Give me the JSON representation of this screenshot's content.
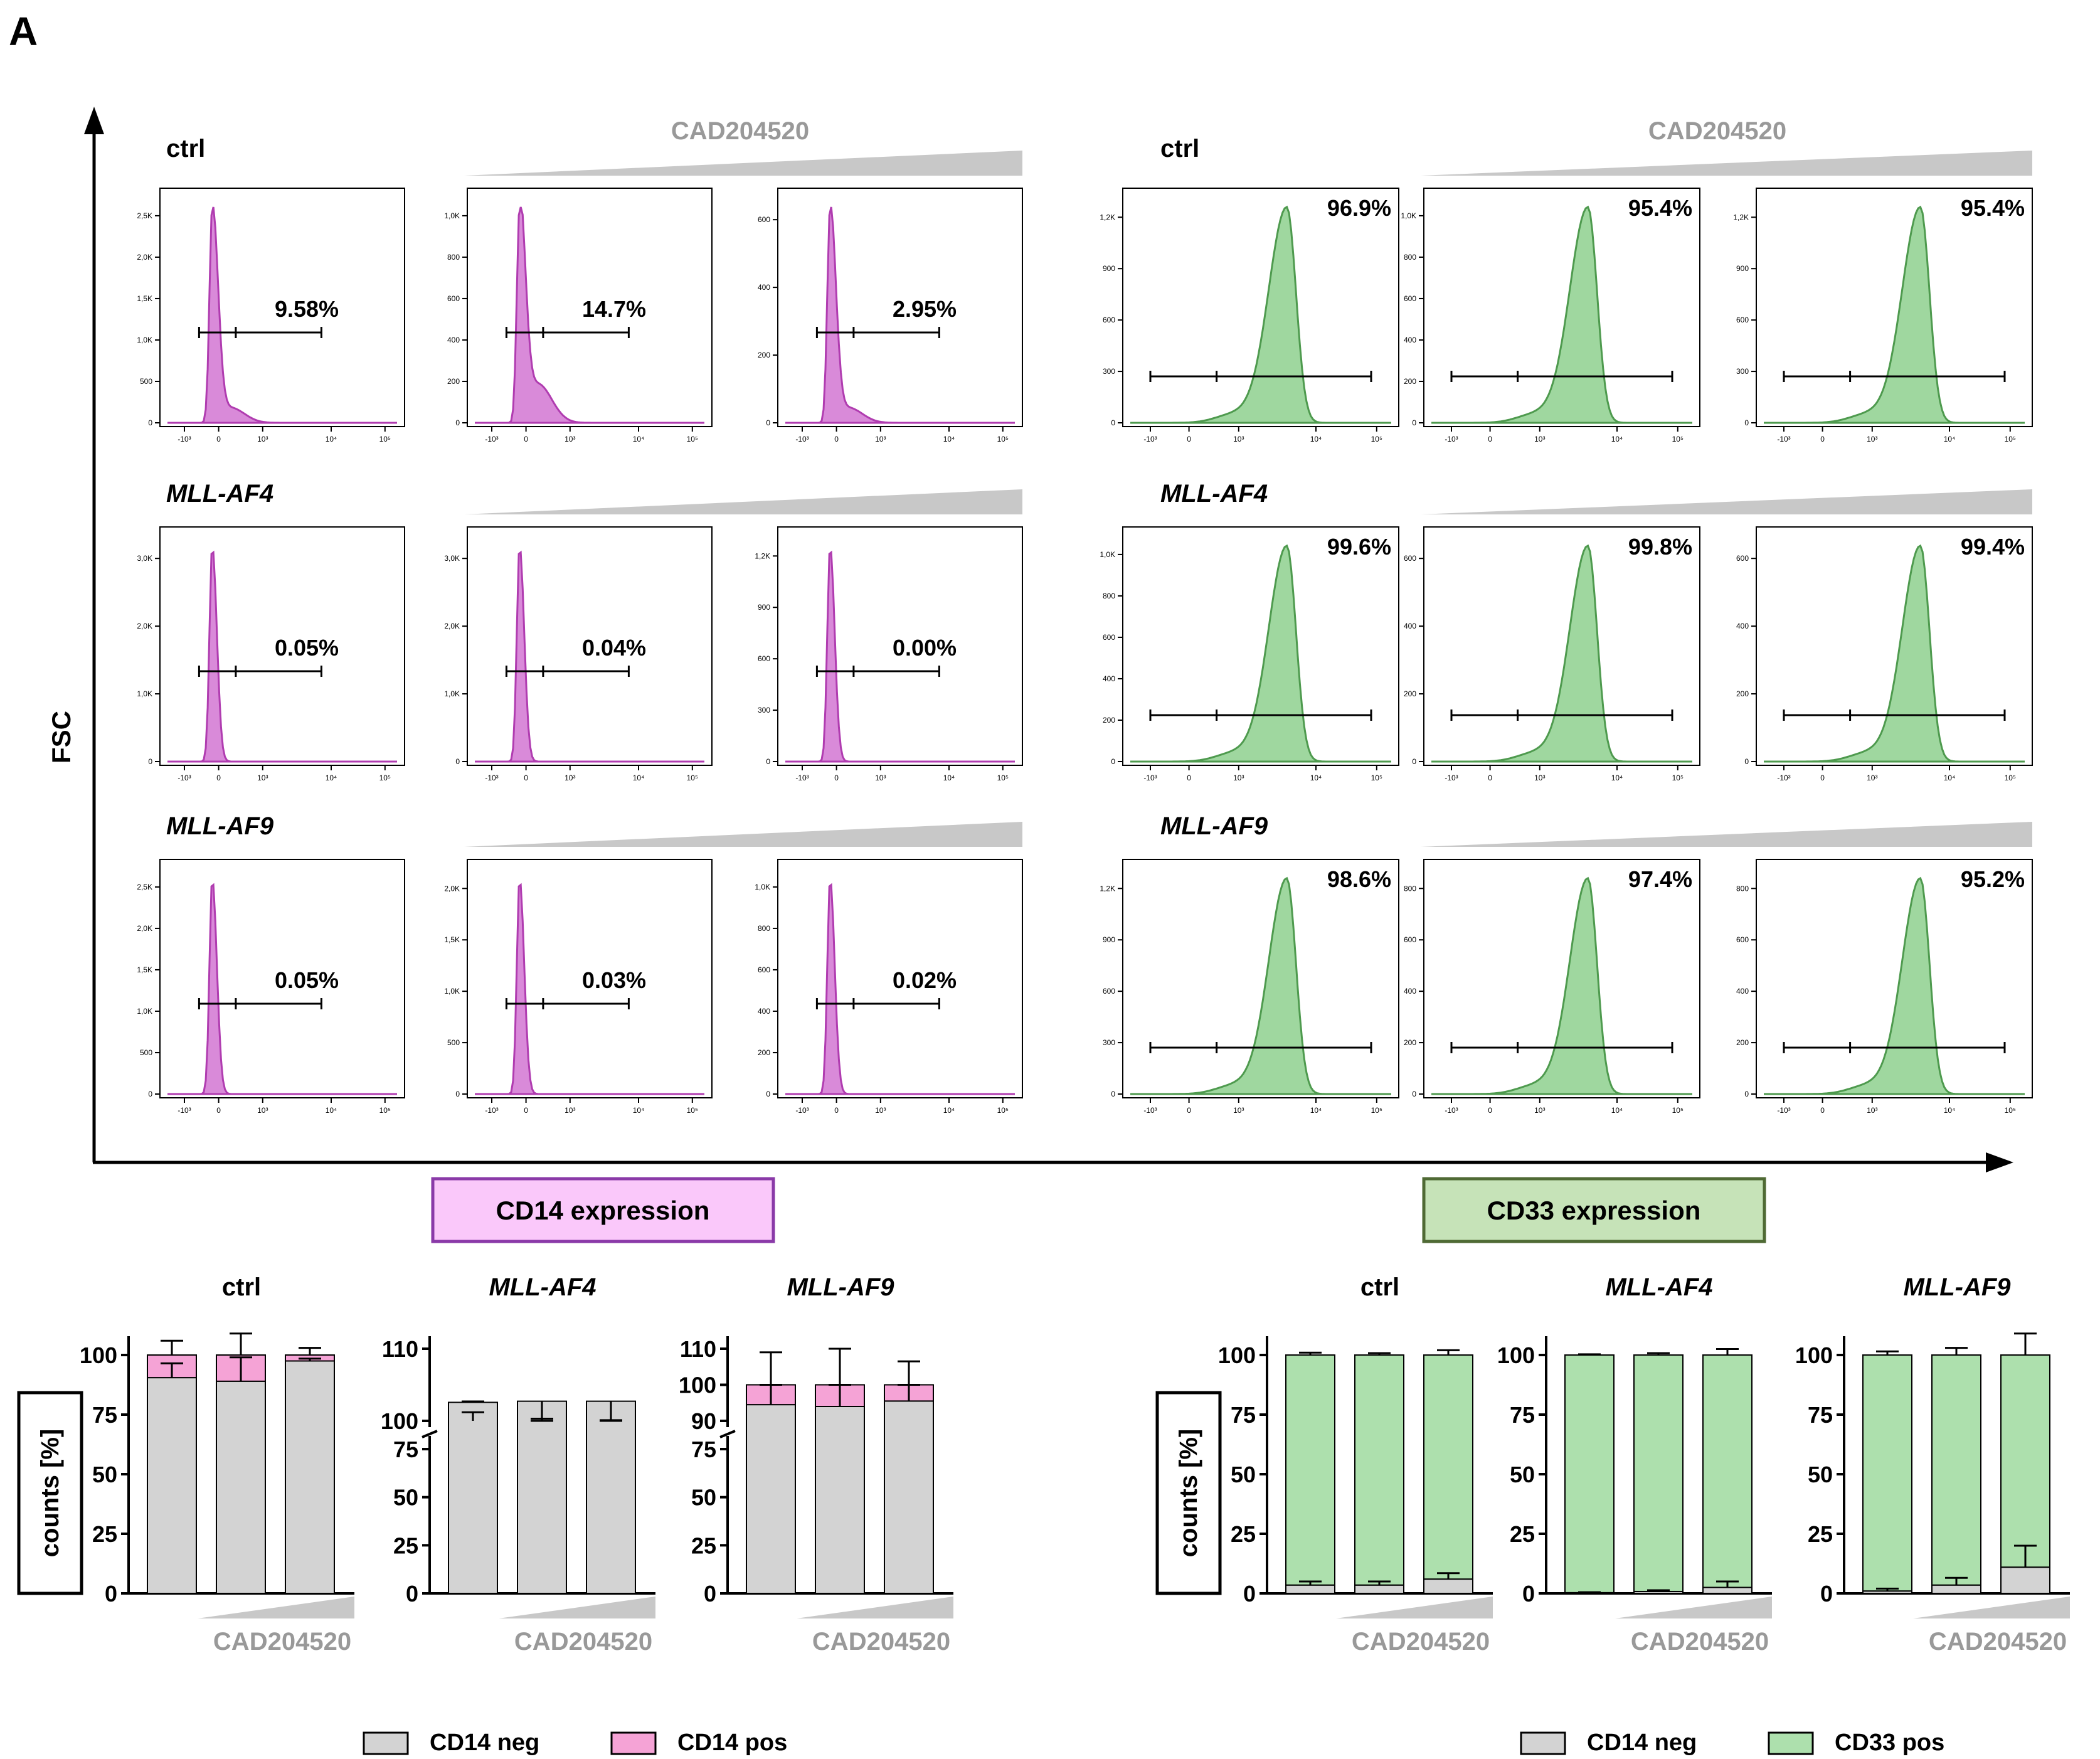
{
  "figure": {
    "panel_label": "A",
    "y_axis_label": "FSC",
    "drug": "CAD204520",
    "cd14_box_label": "CD14 expression",
    "cd33_box_label": "CD33 expression",
    "tick_labels": [
      "-10³",
      "0",
      "10³",
      "10⁴",
      "10⁵"
    ],
    "colors": {
      "cd14_fill": "#d98ad9",
      "cd14_stroke": "#b03cb0",
      "cd33_fill": "#9fd79f",
      "cd33_stroke": "#4e9a4e",
      "neg_fill": "#d3d3d3",
      "pink_box": "#fac8fa",
      "pink_border": "#8a3aa8",
      "green_box": "#c6e3b8",
      "green_border": "#4f6a34",
      "gray": "#999999"
    }
  },
  "chart_data": [
    {
      "type": "histogram",
      "title": "CD14 expression",
      "marker": "CD14",
      "rows": [
        {
          "label": "ctrl",
          "italic": false,
          "panels": [
            {
              "percent": "9.58%",
              "y_ticks": [
                "0",
                "500",
                "1,0K",
                "1,5K",
                "2,0K",
                "2,5K"
              ]
            },
            {
              "percent": "14.7%",
              "y_ticks": [
                "0",
                "200",
                "400",
                "600",
                "800",
                "1,0K"
              ]
            },
            {
              "percent": "2.95%",
              "y_ticks": [
                "0",
                "200",
                "400",
                "600"
              ]
            }
          ]
        },
        {
          "label": "MLL-AF4",
          "italic": true,
          "panels": [
            {
              "percent": "0.05%",
              "y_ticks": [
                "0",
                "1,0K",
                "2,0K",
                "3,0K"
              ]
            },
            {
              "percent": "0.04%",
              "y_ticks": [
                "0",
                "1,0K",
                "2,0K",
                "3,0K"
              ]
            },
            {
              "percent": "0.00%",
              "y_ticks": [
                "0",
                "300",
                "600",
                "900",
                "1,2K"
              ]
            }
          ]
        },
        {
          "label": "MLL-AF9",
          "italic": true,
          "panels": [
            {
              "percent": "0.05%",
              "y_ticks": [
                "0",
                "500",
                "1,0K",
                "1,5K",
                "2,0K",
                "2,5K"
              ]
            },
            {
              "percent": "0.03%",
              "y_ticks": [
                "0",
                "500",
                "1,0K",
                "1,5K",
                "2,0K"
              ]
            },
            {
              "percent": "0.02%",
              "y_ticks": [
                "0",
                "200",
                "400",
                "600",
                "800",
                "1,0K"
              ]
            }
          ]
        }
      ]
    },
    {
      "type": "histogram",
      "title": "CD33 expression",
      "marker": "CD33",
      "rows": [
        {
          "label": "ctrl",
          "italic": false,
          "panels": [
            {
              "percent": "96.9%",
              "y_ticks": [
                "0",
                "300",
                "600",
                "900",
                "1,2K"
              ]
            },
            {
              "percent": "95.4%",
              "y_ticks": [
                "0",
                "200",
                "400",
                "600",
                "800",
                "1,0K"
              ]
            },
            {
              "percent": "95.4%",
              "y_ticks": [
                "0",
                "300",
                "600",
                "900",
                "1,2K"
              ]
            }
          ]
        },
        {
          "label": "MLL-AF4",
          "italic": true,
          "panels": [
            {
              "percent": "99.6%",
              "y_ticks": [
                "0",
                "200",
                "400",
                "600",
                "800",
                "1,0K"
              ]
            },
            {
              "percent": "99.8%",
              "y_ticks": [
                "0",
                "200",
                "400",
                "600"
              ]
            },
            {
              "percent": "99.4%",
              "y_ticks": [
                "0",
                "200",
                "400",
                "600"
              ]
            }
          ]
        },
        {
          "label": "MLL-AF9",
          "italic": true,
          "panels": [
            {
              "percent": "98.6%",
              "y_ticks": [
                "0",
                "300",
                "600",
                "900",
                "1,2K"
              ]
            },
            {
              "percent": "97.4%",
              "y_ticks": [
                "0",
                "200",
                "400",
                "600",
                "800"
              ]
            },
            {
              "percent": "95.2%",
              "y_ticks": [
                "0",
                "200",
                "400",
                "600",
                "800"
              ]
            }
          ]
        }
      ]
    },
    {
      "type": "stacked-bar",
      "group": "CD14",
      "title": "ctrl",
      "italic": false,
      "ylabel": "counts [%]",
      "xlabel": "CAD204520",
      "y_ticks": [
        "0",
        "25",
        "50",
        "75",
        "100"
      ],
      "broken_axis": false,
      "series": [
        {
          "name": "CD14 neg",
          "values": [
            90.5,
            89,
            97.5
          ],
          "err": [
            6,
            10,
            1
          ]
        },
        {
          "name": "CD14 pos",
          "values": [
            9.5,
            11,
            2.5
          ],
          "err": [
            6,
            9,
            3
          ]
        }
      ]
    },
    {
      "type": "stacked-bar",
      "group": "CD14",
      "title": "MLL-AF4",
      "italic": true,
      "xlabel": "CAD204520",
      "y_ticks_upper": [
        "100",
        "110"
      ],
      "y_ticks_lower": [
        "0",
        "25",
        "50",
        "75"
      ],
      "broken_axis": true,
      "series": [
        {
          "name": "CD14 neg",
          "values": [
            99.3,
            99.9,
            99.9
          ],
          "err": [
            0.5,
            0.2,
            0.1
          ]
        },
        {
          "name": "CD14 pos",
          "values": [
            0.7,
            0.1,
            0.1
          ],
          "err": [
            1.2,
            0.3,
            0.1
          ]
        }
      ]
    },
    {
      "type": "stacked-bar",
      "group": "CD14",
      "title": "MLL-AF9",
      "italic": true,
      "xlabel": "CAD204520",
      "y_ticks_upper": [
        "90",
        "100",
        "110"
      ],
      "y_ticks_lower": [
        "0",
        "25",
        "50",
        "75"
      ],
      "broken_axis": true,
      "series": [
        {
          "name": "CD14 neg",
          "values": [
            94.5,
            94,
            95.5
          ],
          "err": [
            9,
            10,
            7
          ]
        },
        {
          "name": "CD14 pos",
          "values": [
            5.5,
            6,
            4.5
          ],
          "err": [
            9,
            10,
            6.5
          ]
        }
      ]
    },
    {
      "type": "stacked-bar",
      "group": "CD33",
      "title": "ctrl",
      "italic": false,
      "ylabel": "counts [%]",
      "xlabel": "CAD204520",
      "y_ticks": [
        "0",
        "25",
        "50",
        "75",
        "100"
      ],
      "broken_axis": false,
      "series": [
        {
          "name": "CD14 neg",
          "values": [
            3.5,
            3.5,
            6
          ],
          "err": [
            1.5,
            1.5,
            2.5
          ]
        },
        {
          "name": "CD33 pos",
          "values": [
            96.5,
            96.5,
            94
          ],
          "err": [
            1,
            0.8,
            2
          ]
        }
      ]
    },
    {
      "type": "stacked-bar",
      "group": "CD33",
      "title": "MLL-AF4",
      "italic": true,
      "xlabel": "CAD204520",
      "y_ticks": [
        "0",
        "25",
        "50",
        "75",
        "100"
      ],
      "broken_axis": false,
      "series": [
        {
          "name": "CD14 neg",
          "values": [
            0.3,
            0.8,
            2.5
          ],
          "err": [
            0.2,
            0.5,
            2.5
          ]
        },
        {
          "name": "CD33 pos",
          "values": [
            99.7,
            99.2,
            97.5
          ],
          "err": [
            0.3,
            0.8,
            2.5
          ]
        }
      ]
    },
    {
      "type": "stacked-bar",
      "group": "CD33",
      "title": "MLL-AF9",
      "italic": true,
      "xlabel": "CAD204520",
      "y_ticks": [
        "0",
        "25",
        "50",
        "75",
        "100"
      ],
      "broken_axis": false,
      "series": [
        {
          "name": "CD14 neg",
          "values": [
            1,
            3.5,
            11
          ],
          "err": [
            1,
            3,
            9
          ]
        },
        {
          "name": "CD33 pos",
          "values": [
            99,
            96.5,
            89
          ],
          "err": [
            1.5,
            3,
            9
          ]
        }
      ]
    }
  ],
  "legends": {
    "cd14": [
      {
        "label": "CD14 neg",
        "color": "#d3d3d3"
      },
      {
        "label": "CD14 pos",
        "color": "#f5a3d6"
      }
    ],
    "cd33": [
      {
        "label": "CD14 neg",
        "color": "#d3d3d3"
      },
      {
        "label": "CD33 pos",
        "color": "#ade0ad"
      }
    ]
  }
}
